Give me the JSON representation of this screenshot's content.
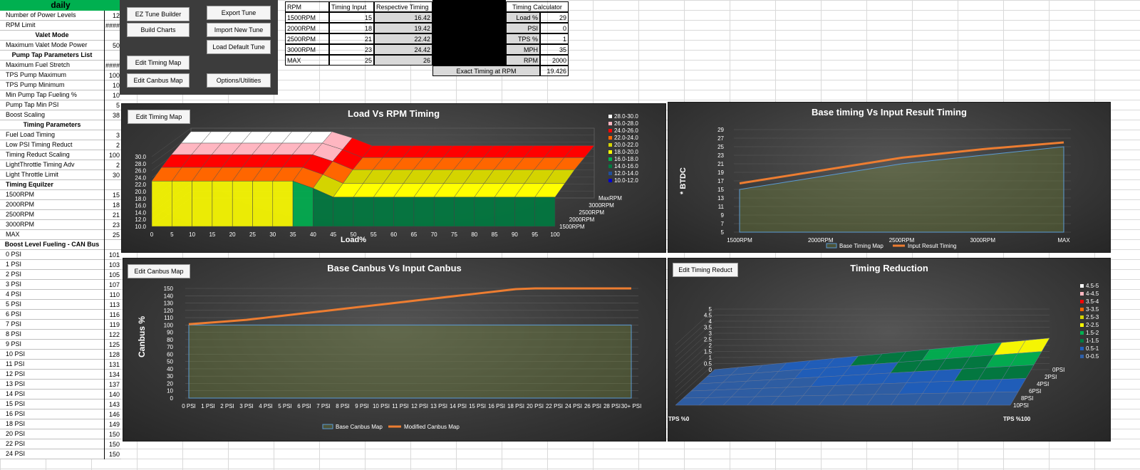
{
  "sheet_title": "daily",
  "params": [
    {
      "label": "Number of Power Levels",
      "value": "12",
      "type": "row"
    },
    {
      "label": "RPM Limit",
      "value": "####",
      "type": "row"
    },
    {
      "label": "Valet Mode",
      "value": "",
      "type": "hdr"
    },
    {
      "label": "Maximum Valet Mode Power",
      "value": "50",
      "type": "row"
    },
    {
      "label": "Pump Tap Parameters List",
      "value": "",
      "type": "hdr"
    },
    {
      "label": "Maximum Fuel Stretch",
      "value": "####",
      "type": "row"
    },
    {
      "label": "TPS Pump Maximum",
      "value": "100",
      "type": "row"
    },
    {
      "label": "TPS Pump Minimum",
      "value": "10",
      "type": "row"
    },
    {
      "label": "Min Pump Tap Fueling %",
      "value": "10",
      "type": "row"
    },
    {
      "label": "Pump Tap Min PSI",
      "value": "5",
      "type": "row"
    },
    {
      "label": "Boost Scaling",
      "value": "38",
      "type": "row"
    },
    {
      "label": "Timing Parameters",
      "value": "",
      "type": "hdr"
    },
    {
      "label": "Fuel Load Timing",
      "value": "3",
      "type": "row"
    },
    {
      "label": "Low PSI Timing Reduct",
      "value": "2",
      "type": "row"
    },
    {
      "label": "Timing Reduct Scaling",
      "value": "100",
      "type": "row"
    },
    {
      "label": "LightThrottle Timing Adv",
      "value": "2",
      "type": "row"
    },
    {
      "label": "Light Throttle Limit",
      "value": "30",
      "type": "row"
    },
    {
      "label": "Timing Equilzer",
      "value": "",
      "type": "bold"
    },
    {
      "label": "1500RPM",
      "value": "15",
      "type": "row"
    },
    {
      "label": "2000RPM",
      "value": "18",
      "type": "row"
    },
    {
      "label": "2500RPM",
      "value": "21",
      "type": "row"
    },
    {
      "label": "3000RPM",
      "value": "23",
      "type": "row"
    },
    {
      "label": "MAX",
      "value": "25",
      "type": "row"
    },
    {
      "label": "Boost Level Fueling - CAN Bus",
      "value": "",
      "type": "hdr"
    },
    {
      "label": "0 PSI",
      "value": "101",
      "type": "row"
    },
    {
      "label": "1 PSI",
      "value": "103",
      "type": "row"
    },
    {
      "label": "2 PSI",
      "value": "105",
      "type": "row"
    },
    {
      "label": "3 PSI",
      "value": "107",
      "type": "row"
    },
    {
      "label": "4 PSI",
      "value": "110",
      "type": "row"
    },
    {
      "label": "5 PSI",
      "value": "113",
      "type": "row"
    },
    {
      "label": "6 PSI",
      "value": "116",
      "type": "row"
    },
    {
      "label": "7 PSI",
      "value": "119",
      "type": "row"
    },
    {
      "label": "8 PSI",
      "value": "122",
      "type": "row"
    },
    {
      "label": "9 PSI",
      "value": "125",
      "type": "row"
    },
    {
      "label": "10 PSI",
      "value": "128",
      "type": "row"
    },
    {
      "label": "11 PSI",
      "value": "131",
      "type": "row"
    },
    {
      "label": "12 PSI",
      "value": "134",
      "type": "row"
    },
    {
      "label": "13 PSI",
      "value": "137",
      "type": "row"
    },
    {
      "label": "14 PSI",
      "value": "140",
      "type": "row"
    },
    {
      "label": "15 PSI",
      "value": "143",
      "type": "row"
    },
    {
      "label": "16 PSI",
      "value": "146",
      "type": "row"
    },
    {
      "label": "18 PSI",
      "value": "149",
      "type": "row"
    },
    {
      "label": "20 PSI",
      "value": "150",
      "type": "row"
    },
    {
      "label": "22 PSI",
      "value": "150",
      "type": "row"
    },
    {
      "label": "24 PSI",
      "value": "150",
      "type": "row"
    }
  ],
  "buttons": {
    "ez_tune": "EZ Tune Builder",
    "build_charts": "Build Charts",
    "export_tune": "Export Tune",
    "import_tune": "Import New Tune",
    "load_default": "Load Default Tune",
    "edit_timing_map": "Edit Timing Map",
    "edit_canbus_map": "Edit Canbus Map",
    "options": "Options/Utilities",
    "chart_edit_timing_map": "Edit Timing Map",
    "chart_edit_canbus_map": "Edit Canbus Map",
    "chart_edit_timing_reduct": "Edit Timing Reduct"
  },
  "timing_table": {
    "headers": [
      "RPM",
      "Timing Input",
      "Respective Timing"
    ],
    "rows": [
      [
        "1500RPM",
        "15",
        "16.42"
      ],
      [
        "2000RPM",
        "18",
        "19.42"
      ],
      [
        "2500RPM",
        "21",
        "22.42"
      ],
      [
        "3000RPM",
        "23",
        "24.42"
      ],
      [
        "MAX",
        "25",
        "26"
      ]
    ]
  },
  "calculator": {
    "title": "Timing Calculator",
    "rows": [
      [
        "Load %",
        "29"
      ],
      [
        "PSI",
        "0"
      ],
      [
        "TPS %",
        "1"
      ],
      [
        "MPH",
        "35"
      ],
      [
        "RPM",
        "2000"
      ]
    ],
    "exact_label": "Exact Timing at RPM",
    "exact_value": "19.426"
  },
  "colors": {
    "green_header": "#00b050",
    "chart_bg": "#3a3a3a",
    "series_orange": "#ed7d31",
    "series_blue": "#5b9bd5"
  },
  "chart_data": [
    {
      "type": "surface",
      "title": "Load Vs RPM Timing",
      "xlabel": "Load%",
      "x_ticks": [
        "0",
        "5",
        "10",
        "15",
        "20",
        "25",
        "30",
        "35",
        "40",
        "45",
        "50",
        "55",
        "60",
        "65",
        "70",
        "75",
        "80",
        "85",
        "90",
        "95",
        "100"
      ],
      "y_ticks": [
        "30.0",
        "28.0",
        "26.0",
        "24.0",
        "22.0",
        "20.0",
        "18.0",
        "16.0",
        "14.0",
        "12.0",
        "10.0"
      ],
      "depth_ticks": [
        "MaxRPM",
        "3000RPM",
        "2500RPM",
        "2000RPM",
        "1500RPM"
      ],
      "legend": [
        {
          "label": "28.0-30.0",
          "color": "#ffffff"
        },
        {
          "label": "26.0-28.0",
          "color": "#ffb6c1"
        },
        {
          "label": "24.0-26.0",
          "color": "#ff0000"
        },
        {
          "label": "22.0-24.0",
          "color": "#ff6600"
        },
        {
          "label": "20.0-22.0",
          "color": "#d4d400"
        },
        {
          "label": "18.0-20.0",
          "color": "#ffff00"
        },
        {
          "label": "16.0-18.0",
          "color": "#00b050"
        },
        {
          "label": "14.0-16.0",
          "color": "#007a40"
        },
        {
          "label": "12.0-14.0",
          "color": "#1f4e9a"
        },
        {
          "label": "10.0-12.0",
          "color": "#0000cc"
        }
      ]
    },
    {
      "type": "line",
      "title": "Base timing Vs Input Result Timing",
      "ylabel": "* BTDC",
      "categories": [
        "1500RPM",
        "2000RPM",
        "2500RPM",
        "3000RPM",
        "MAX"
      ],
      "ylim": [
        5,
        29
      ],
      "y_ticks": [
        "29",
        "27",
        "25",
        "23",
        "21",
        "19",
        "17",
        "15",
        "13",
        "11",
        "9",
        "7",
        "5"
      ],
      "series": [
        {
          "name": "Base Timing Map",
          "type": "area",
          "values": [
            15,
            18,
            21,
            23,
            25
          ]
        },
        {
          "name": "Input Result Timing",
          "type": "line",
          "values": [
            16.42,
            19.42,
            22.42,
            24.42,
            26
          ]
        }
      ]
    },
    {
      "type": "line",
      "title": "Base Canbus Vs Input Canbus",
      "ylabel": "Canbus %",
      "categories": [
        "0 PSI",
        "1 PSI",
        "2 PSI",
        "3 PSI",
        "4 PSI",
        "5 PSI",
        "6 PSI",
        "7 PSI",
        "8 PSI",
        "9 PSI",
        "10 PSI",
        "11 PSI",
        "12 PSI",
        "13 PSI",
        "14 PSI",
        "15 PSI",
        "16 PSI",
        "18 PSI",
        "20 PSI",
        "22 PSI",
        "24 PSI",
        "26 PSI",
        "28 PSI",
        "30+ PSI"
      ],
      "ylim": [
        0,
        150
      ],
      "y_ticks": [
        "150",
        "140",
        "130",
        "120",
        "110",
        "100",
        "90",
        "80",
        "70",
        "60",
        "50",
        "40",
        "30",
        "20",
        "10",
        "0"
      ],
      "series": [
        {
          "name": "Base Canbus Map",
          "type": "area",
          "values": [
            100,
            100,
            100,
            100,
            100,
            100,
            100,
            100,
            100,
            100,
            100,
            100,
            100,
            100,
            100,
            100,
            100,
            100,
            100,
            100,
            100,
            100,
            100,
            100
          ]
        },
        {
          "name": "Modified Canbus Map",
          "type": "line",
          "values": [
            101,
            103,
            105,
            107,
            110,
            113,
            116,
            119,
            122,
            125,
            128,
            131,
            134,
            137,
            140,
            143,
            146,
            149,
            150,
            150,
            150,
            150,
            150,
            150
          ]
        }
      ]
    },
    {
      "type": "surface",
      "title": "Timing Reduction",
      "x_labels": [
        "TPS %0",
        "TPS %100"
      ],
      "y_ticks": [
        "5",
        "4.5",
        "4",
        "3.5",
        "3",
        "2.5",
        "2",
        "1.5",
        "1",
        "0.5",
        "0"
      ],
      "depth_ticks": [
        "0PSI",
        "2PSI",
        "4PSI",
        "6PSI",
        "8PSI",
        "10PSI"
      ],
      "legend": [
        {
          "label": "4.5-5",
          "color": "#ffffff"
        },
        {
          "label": "4-4.5",
          "color": "#ffb6c1"
        },
        {
          "label": "3.5-4",
          "color": "#ff0000"
        },
        {
          "label": "3-3.5",
          "color": "#ff6600"
        },
        {
          "label": "2.5-3",
          "color": "#d4d400"
        },
        {
          "label": "2-2.5",
          "color": "#ffff00"
        },
        {
          "label": "1.5-2",
          "color": "#00b050"
        },
        {
          "label": "1-1.5",
          "color": "#007a40"
        },
        {
          "label": "0.5-1",
          "color": "#1f5fbf"
        },
        {
          "label": "0-0.5",
          "color": "#2e5fa8"
        }
      ]
    }
  ]
}
